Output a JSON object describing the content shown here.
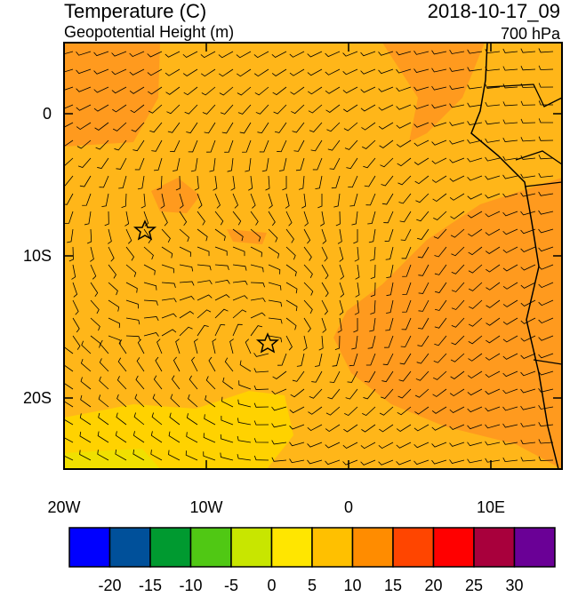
{
  "header": {
    "title": "Temperature (C)",
    "subtitle": "Geopotential Height (m)",
    "time": "2018-10-17_09",
    "level": "700 hPa"
  },
  "map": {
    "lon_lim": [
      -20,
      15
    ],
    "lat_lim": [
      5,
      -25
    ],
    "lon_ticks": [
      {
        "value": -20,
        "label": "20W"
      },
      {
        "value": -10,
        "label": "10W"
      },
      {
        "value": 0,
        "label": "0"
      },
      {
        "value": 10,
        "label": "10E"
      }
    ],
    "lat_ticks": [
      {
        "value": 0,
        "label": "0"
      },
      {
        "value": -10,
        "label": "10S"
      },
      {
        "value": -20,
        "label": "20S"
      }
    ]
  },
  "colorbar": {
    "colors": [
      "#0000ff",
      "#00509a",
      "#009a30",
      "#50c814",
      "#c8e600",
      "#ffe600",
      "#ffc000",
      "#ff8c00",
      "#ff4500",
      "#ff0000",
      "#a8003c",
      "#6a0096"
    ],
    "labels": [
      -20,
      -15,
      -10,
      -5,
      0,
      5,
      10,
      15,
      20,
      25,
      30
    ]
  }
}
